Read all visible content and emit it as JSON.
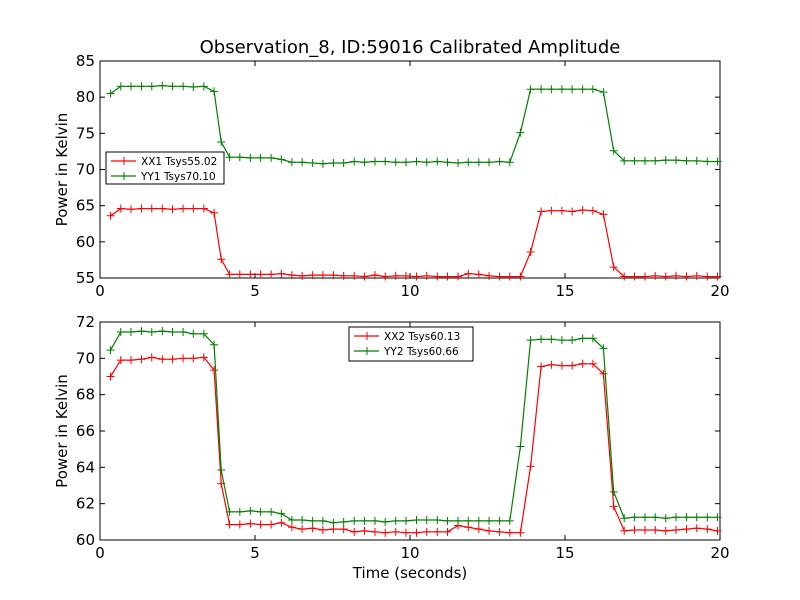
{
  "chart_data": [
    {
      "type": "line",
      "title": "Observation_8, ID:59016 Calibrated Amplitude",
      "xlabel": "",
      "ylabel": "Power in Kelvin",
      "xlim": [
        0,
        20
      ],
      "ylim": [
        55,
        85
      ],
      "xticks": [
        "0",
        "5",
        "10",
        "15",
        "20"
      ],
      "yticks": [
        "55",
        "60",
        "65",
        "70",
        "75",
        "80",
        "85"
      ],
      "grid": false,
      "legend_position": "center-left",
      "x": [
        0.34,
        0.67,
        1.0,
        1.34,
        1.67,
        2.01,
        2.34,
        2.68,
        3.01,
        3.35,
        3.68,
        3.91,
        4.18,
        4.51,
        4.85,
        5.18,
        5.52,
        5.85,
        6.19,
        6.52,
        6.86,
        7.19,
        7.53,
        7.86,
        8.2,
        8.53,
        8.87,
        9.2,
        9.54,
        9.87,
        10.21,
        10.54,
        10.88,
        11.21,
        11.55,
        11.88,
        12.22,
        12.55,
        12.89,
        13.22,
        13.56,
        13.89,
        14.23,
        14.56,
        14.9,
        15.23,
        15.57,
        15.9,
        16.24,
        16.57,
        16.91,
        17.24,
        17.58,
        17.91,
        18.25,
        18.58,
        18.92,
        19.25,
        19.59,
        19.92
      ],
      "series": [
        {
          "name": "XX1 Tsys55.02",
          "color": "#ff0000",
          "values": [
            63.6,
            64.6,
            64.5,
            64.6,
            64.6,
            64.6,
            64.5,
            64.6,
            64.6,
            64.6,
            64.0,
            57.6,
            55.5,
            55.5,
            55.5,
            55.5,
            55.5,
            55.6,
            55.4,
            55.3,
            55.4,
            55.4,
            55.4,
            55.3,
            55.3,
            55.2,
            55.4,
            55.2,
            55.3,
            55.3,
            55.2,
            55.3,
            55.2,
            55.2,
            55.2,
            55.6,
            55.5,
            55.3,
            55.2,
            55.2,
            55.2,
            58.6,
            64.2,
            64.3,
            64.3,
            64.2,
            64.4,
            64.3,
            63.8,
            56.5,
            55.2,
            55.2,
            55.2,
            55.3,
            55.2,
            55.3,
            55.2,
            55.3,
            55.2,
            55.2
          ]
        },
        {
          "name": "YY1 Tsys70.10",
          "color": "#008000",
          "values": [
            80.5,
            81.5,
            81.5,
            81.5,
            81.5,
            81.6,
            81.5,
            81.5,
            81.4,
            81.5,
            80.8,
            73.8,
            71.7,
            71.7,
            71.6,
            71.6,
            71.6,
            71.4,
            71.0,
            71.0,
            70.9,
            70.8,
            70.9,
            70.9,
            71.1,
            71.0,
            71.1,
            71.1,
            71.0,
            71.0,
            71.1,
            71.0,
            71.1,
            71.0,
            70.9,
            71.0,
            71.0,
            71.0,
            71.1,
            71.0,
            75.1,
            81.1,
            81.1,
            81.1,
            81.1,
            81.1,
            81.1,
            81.1,
            80.7,
            72.6,
            71.2,
            71.2,
            71.2,
            71.2,
            71.3,
            71.3,
            71.2,
            71.2,
            71.1,
            71.1
          ]
        }
      ]
    },
    {
      "type": "line",
      "title": "",
      "xlabel": "Time (seconds)",
      "ylabel": "Power in Kelvin",
      "xlim": [
        0,
        20
      ],
      "ylim": [
        60,
        72
      ],
      "xticks": [
        "0",
        "5",
        "10",
        "15",
        "20"
      ],
      "yticks": [
        "60",
        "62",
        "64",
        "66",
        "68",
        "70",
        "72"
      ],
      "grid": false,
      "legend_position": "top-center",
      "x": [
        0.34,
        0.67,
        1.0,
        1.34,
        1.67,
        2.01,
        2.34,
        2.68,
        3.01,
        3.35,
        3.68,
        3.91,
        4.18,
        4.51,
        4.85,
        5.18,
        5.52,
        5.85,
        6.19,
        6.52,
        6.86,
        7.19,
        7.53,
        7.86,
        8.2,
        8.53,
        8.87,
        9.2,
        9.54,
        9.87,
        10.21,
        10.54,
        10.88,
        11.21,
        11.55,
        11.88,
        12.22,
        12.55,
        12.89,
        13.22,
        13.56,
        13.89,
        14.23,
        14.56,
        14.9,
        15.23,
        15.57,
        15.9,
        16.24,
        16.57,
        16.91,
        17.24,
        17.58,
        17.91,
        18.25,
        18.58,
        18.92,
        19.25,
        19.59,
        19.92
      ],
      "series": [
        {
          "name": "XX2 Tsys60.13",
          "color": "#ff0000",
          "values": [
            69.0,
            69.9,
            69.9,
            69.95,
            70.05,
            69.95,
            69.95,
            70.0,
            70.0,
            70.05,
            69.35,
            63.1,
            60.85,
            60.85,
            60.9,
            60.85,
            60.85,
            60.95,
            60.7,
            60.6,
            60.65,
            60.55,
            60.6,
            60.6,
            60.45,
            60.5,
            60.45,
            60.4,
            60.45,
            60.4,
            60.4,
            60.45,
            60.45,
            60.45,
            60.8,
            60.7,
            60.6,
            60.5,
            60.45,
            60.4,
            60.4,
            64.05,
            69.55,
            69.65,
            69.6,
            69.6,
            69.7,
            69.7,
            69.15,
            61.85,
            60.5,
            60.55,
            60.55,
            60.55,
            60.5,
            60.55,
            60.6,
            60.65,
            60.6,
            60.5
          ]
        },
        {
          "name": "YY2 Tsys60.66",
          "color": "#008000",
          "values": [
            70.45,
            71.45,
            71.45,
            71.5,
            71.45,
            71.5,
            71.45,
            71.45,
            71.35,
            71.35,
            70.75,
            63.85,
            61.55,
            61.55,
            61.6,
            61.55,
            61.55,
            61.45,
            61.1,
            61.1,
            61.05,
            61.05,
            60.95,
            61.0,
            61.05,
            61.05,
            61.05,
            61.0,
            61.05,
            61.05,
            61.1,
            61.1,
            61.1,
            61.05,
            61.05,
            61.05,
            61.05,
            61.05,
            61.05,
            61.05,
            65.15,
            71.0,
            71.05,
            71.05,
            71.0,
            71.0,
            71.1,
            71.1,
            70.55,
            62.65,
            61.2,
            61.25,
            61.25,
            61.25,
            61.2,
            61.25,
            61.25,
            61.25,
            61.25,
            61.25
          ]
        }
      ]
    }
  ]
}
